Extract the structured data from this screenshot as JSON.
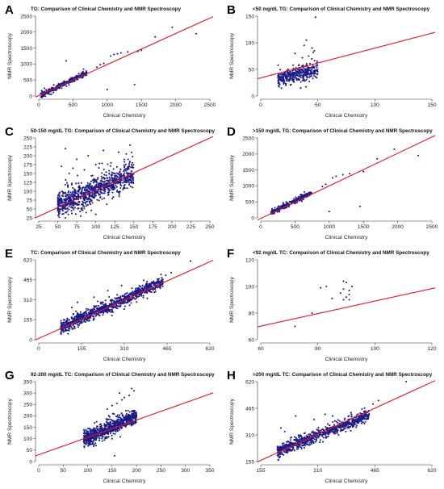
{
  "chart_data": [
    {
      "letter": "A",
      "type": "scatter",
      "title": "TG: Comparison of Clinical Chemistry and NMR Spectroscopy",
      "xlabel": "Clinical Chemistry",
      "ylabel": "NMR Spectroscopy",
      "xlim": [
        0,
        2500
      ],
      "ylim": [
        0,
        2500
      ],
      "xticks": [
        "0",
        "500",
        "1000",
        "1500",
        "2000",
        "2500"
      ],
      "yticks": [
        "0",
        "500",
        "1000",
        "1500",
        "2000",
        "2500"
      ],
      "cloud": {
        "x_min": 30,
        "x_max": 700,
        "slope": 1.05,
        "intercept": -10,
        "spread": 55,
        "n": 320
      },
      "points": [
        [
          1000,
          200
        ],
        [
          1050,
          1250
        ],
        [
          1100,
          1300
        ],
        [
          1150,
          1320
        ],
        [
          1200,
          1350
        ],
        [
          1300,
          1380
        ],
        [
          1400,
          360
        ],
        [
          1450,
          1400
        ],
        [
          1500,
          1430
        ],
        [
          1700,
          1850
        ],
        [
          1950,
          2150
        ],
        [
          2300,
          1950
        ],
        [
          400,
          1100
        ],
        [
          850,
          900
        ],
        [
          900,
          980
        ],
        [
          950,
          1020
        ]
      ],
      "fit": {
        "slope": 0.97,
        "intercept": 15
      },
      "point_color": "#1a1a8c",
      "line_color": "#e8141e"
    },
    {
      "letter": "B",
      "type": "scatter",
      "title": "<50 mg/dL TG: Comparison of Clinical Chemistry and NMR Spectroscopy",
      "xlabel": "Clinical Chemistry",
      "ylabel": "NMR Spectroscopy",
      "xlim": [
        0,
        150
      ],
      "ylim": [
        0,
        150
      ],
      "xticks": [
        "0",
        "50",
        "100",
        "150"
      ],
      "yticks": [
        "0",
        "50",
        "100",
        "150"
      ],
      "cloud": {
        "x_min": 15,
        "x_max": 50,
        "slope": 0.5,
        "intercept": 25,
        "spread": 10,
        "n": 380
      },
      "points": [
        [
          48,
          148
        ],
        [
          40,
          105
        ],
        [
          38,
          95
        ],
        [
          45,
          90
        ],
        [
          30,
          80
        ],
        [
          46,
          82
        ],
        [
          35,
          15
        ],
        [
          22,
          20
        ],
        [
          42,
          75
        ],
        [
          47,
          85
        ]
      ],
      "fit": {
        "slope": 0.56,
        "intercept": 34
      },
      "point_color": "#1a1a8c",
      "line_color": "#e8141e"
    },
    {
      "letter": "C",
      "type": "scatter",
      "title": "50-150 mg/dL TG: Comparison of Clinical Chemistry and NMR Spectroscopy",
      "xlabel": "Clinical Chemistry",
      "ylabel": "NMR Spectroscopy",
      "xlim": [
        25,
        250
      ],
      "ylim": [
        25,
        250
      ],
      "xticks": [
        "25",
        "50",
        "75",
        "100",
        "125",
        "150",
        "175",
        "200",
        "225",
        "250"
      ],
      "yticks": [
        "25",
        "50",
        "75",
        "100",
        "125",
        "150",
        "175",
        "200",
        "225",
        "250"
      ],
      "cloud": {
        "x_min": 50,
        "x_max": 150,
        "slope": 0.92,
        "intercept": 12,
        "spread": 24,
        "n": 900
      },
      "points": [
        [
          60,
          220
        ],
        [
          75,
          190
        ],
        [
          90,
          200
        ],
        [
          110,
          215
        ],
        [
          130,
          210
        ],
        [
          145,
          230
        ],
        [
          55,
          170
        ],
        [
          100,
          175
        ],
        [
          120,
          180
        ],
        [
          140,
          205
        ],
        [
          70,
          165
        ],
        [
          80,
          30
        ],
        [
          60,
          25
        ],
        [
          100,
          35
        ],
        [
          65,
          150
        ],
        [
          85,
          160
        ]
      ],
      "fit": {
        "slope": 0.98,
        "intercept": 5
      },
      "point_color": "#1a1a8c",
      "line_color": "#e8141e"
    },
    {
      "letter": "D",
      "type": "scatter",
      "title": ">150 mg/dL TG: Comparison of Clinical Chemistry and NMR Spectroscopy",
      "xlabel": "Clinical Chemistry",
      "ylabel": "NMR Spectroscopy",
      "xlim": [
        0,
        2500
      ],
      "ylim": [
        0,
        2500
      ],
      "xticks": [
        "0",
        "500",
        "1000",
        "1500",
        "2000",
        "2500"
      ],
      "yticks": [
        "0",
        "500",
        "1000",
        "1500",
        "2000",
        "2500"
      ],
      "cloud": {
        "x_min": 150,
        "x_max": 750,
        "slope": 1.04,
        "intercept": 10,
        "spread": 55,
        "n": 260
      },
      "points": [
        [
          1000,
          200
        ],
        [
          1050,
          1250
        ],
        [
          1100,
          1300
        ],
        [
          1200,
          1350
        ],
        [
          1300,
          1380
        ],
        [
          1450,
          360
        ],
        [
          1500,
          1450
        ],
        [
          1700,
          1850
        ],
        [
          1950,
          2150
        ],
        [
          2300,
          1950
        ],
        [
          900,
          980
        ],
        [
          950,
          1050
        ]
      ],
      "fit": {
        "slope": 1.02,
        "intercept": -20
      },
      "point_color": "#1a1a8c",
      "line_color": "#e8141e"
    },
    {
      "letter": "E",
      "type": "scatter",
      "title": "TC: Comparison of Clinical Chemistry and NMR Spectroscopy",
      "xlabel": "Clinical Chemistry",
      "ylabel": "NMR Spectroscopy",
      "xlim": [
        0,
        620
      ],
      "ylim": [
        0,
        620
      ],
      "xticks": [
        "0",
        "155",
        "310",
        "465",
        "620"
      ],
      "yticks": [
        "0",
        "155",
        "310",
        "465",
        "620"
      ],
      "cloud": {
        "x_min": 80,
        "x_max": 450,
        "slope": 0.95,
        "intercept": 20,
        "spread": 30,
        "n": 1000
      },
      "points": [
        [
          550,
          610
        ],
        [
          480,
          520
        ],
        [
          460,
          500
        ],
        [
          430,
          470
        ],
        [
          120,
          250
        ],
        [
          140,
          290
        ],
        [
          300,
          420
        ],
        [
          250,
          380
        ],
        [
          200,
          330
        ],
        [
          90,
          100
        ],
        [
          100,
          130
        ],
        [
          380,
          460
        ],
        [
          400,
          380
        ]
      ],
      "fit": {
        "slope": 0.96,
        "intercept": 10
      },
      "point_color": "#1a1a8c",
      "line_color": "#e8141e"
    },
    {
      "letter": "F",
      "type": "scatter",
      "title": "<92 mg/dL TC: Comparison of Clinical Chemistry and NMR Spectroscopy",
      "xlabel": "Clinical Chemistry",
      "ylabel": "NMR Spectroscopy",
      "xlim": [
        60,
        120
      ],
      "ylim": [
        60,
        120
      ],
      "xticks": [
        "60",
        "80",
        "100",
        "120"
      ],
      "yticks": [
        "60",
        "80",
        "100",
        "120"
      ],
      "points": [
        [
          72,
          70
        ],
        [
          78,
          80
        ],
        [
          81,
          99
        ],
        [
          83,
          100
        ],
        [
          85,
          91
        ],
        [
          88,
          95
        ],
        [
          89,
          104
        ],
        [
          90,
          103
        ],
        [
          89,
          98
        ],
        [
          91,
          97
        ],
        [
          90,
          92
        ],
        [
          91,
          94
        ],
        [
          92,
          100
        ],
        [
          89,
          90
        ],
        [
          91,
          90
        ]
      ],
      "fit": {
        "slope": 0.47,
        "intercept": 42
      },
      "point_color": "#1a1a8c",
      "line_color": "#e8141e"
    },
    {
      "letter": "G",
      "type": "scatter",
      "title": "92-200 mg/dL TC: Comparison of Clinical Chemistry and NMR Spectroscopy",
      "xlabel": "Clinical Chemistry",
      "ylabel": "NMR Spectroscopy",
      "xlim": [
        0,
        350
      ],
      "ylim": [
        0,
        350
      ],
      "xticks": [
        "0",
        "50",
        "100",
        "150",
        "200",
        "250",
        "300",
        "350"
      ],
      "yticks": [
        "0",
        "50",
        "100",
        "150",
        "200",
        "250",
        "300",
        "350"
      ],
      "cloud": {
        "x_min": 92,
        "x_max": 200,
        "slope": 0.95,
        "intercept": 10,
        "spread": 22,
        "n": 800
      },
      "points": [
        [
          155,
          25
        ],
        [
          165,
          300
        ],
        [
          190,
          320
        ],
        [
          175,
          280
        ],
        [
          185,
          290
        ],
        [
          195,
          310
        ],
        [
          150,
          245
        ],
        [
          160,
          255
        ],
        [
          170,
          270
        ],
        [
          140,
          230
        ],
        [
          130,
          90
        ],
        [
          150,
          100
        ]
      ],
      "fit": {
        "slope": 0.76,
        "intercept": 30
      },
      "point_color": "#1a1a8c",
      "line_color": "#e8141e"
    },
    {
      "letter": "H",
      "type": "scatter",
      "title": ">200 mg/dL TC: Comparison of Clinical Chemistry and NMR Spectroscopy",
      "xlabel": "Clinical Chemistry",
      "ylabel": "NMR Spectroscopy",
      "xlim": [
        155,
        620
      ],
      "ylim": [
        155,
        620
      ],
      "xticks": [
        "155",
        "310",
        "465",
        "620"
      ],
      "yticks": [
        "155",
        "310",
        "465",
        "620"
      ],
      "cloud": {
        "x_min": 200,
        "x_max": 450,
        "slope": 0.85,
        "intercept": 45,
        "spread": 24,
        "n": 800
      },
      "points": [
        [
          210,
          350
        ],
        [
          220,
          330
        ],
        [
          250,
          420
        ],
        [
          300,
          400
        ],
        [
          330,
          430
        ],
        [
          350,
          420
        ],
        [
          400,
          440
        ],
        [
          430,
          460
        ],
        [
          460,
          490
        ],
        [
          475,
          510
        ],
        [
          550,
          620
        ],
        [
          205,
          180
        ]
      ],
      "fit": {
        "slope": 0.98,
        "intercept": 10
      },
      "point_color": "#1a1a8c",
      "line_color": "#e8141e"
    }
  ]
}
